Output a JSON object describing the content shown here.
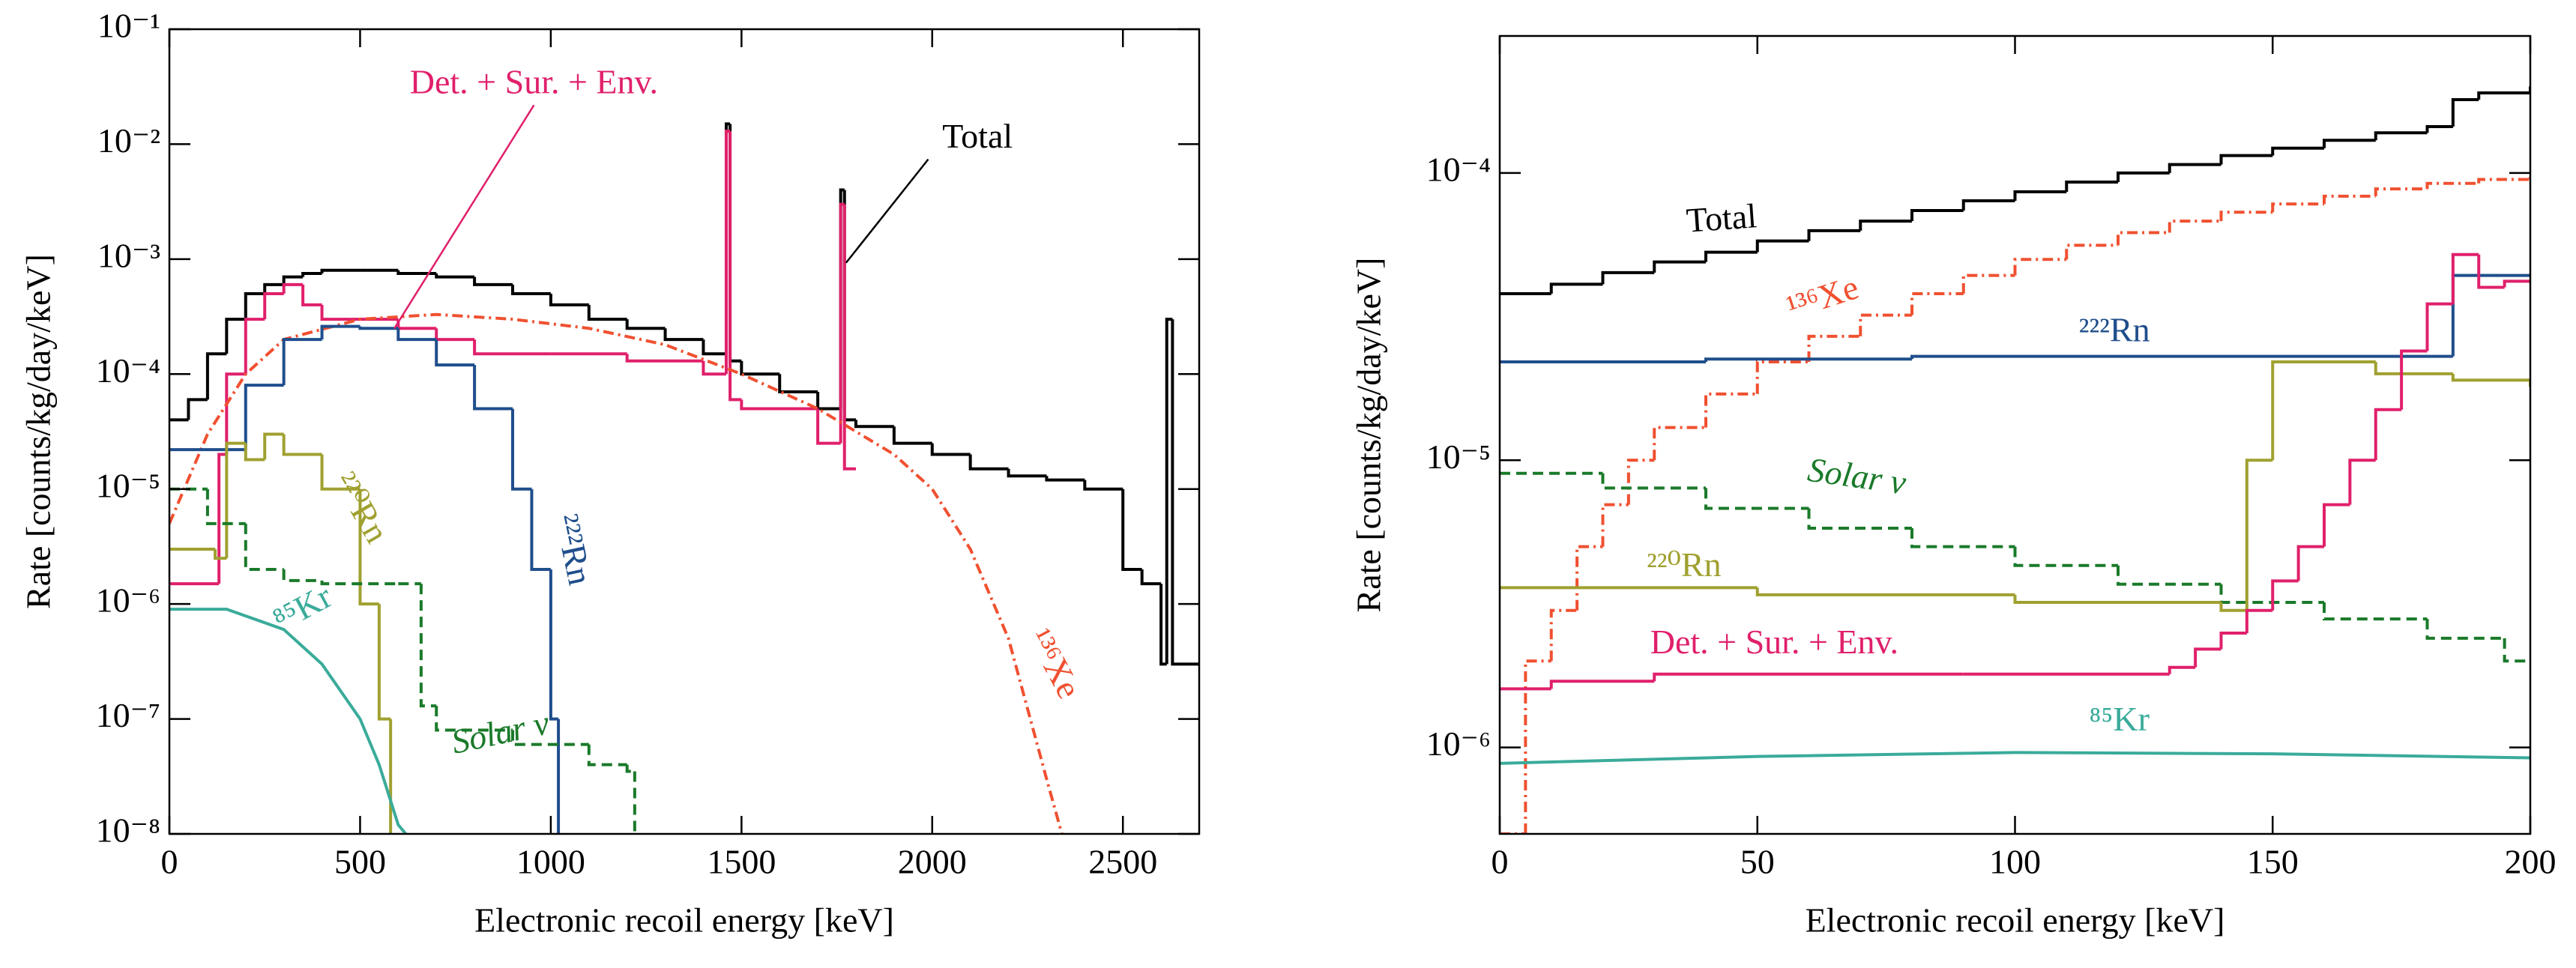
{
  "chart_data": [
    {
      "type": "line",
      "log_y": true,
      "xlabel": "Electronic recoil energy [keV]",
      "ylabel": "Rate [counts/kg/day/keV]",
      "xlim": [
        0,
        2700
      ],
      "xticks": [
        0,
        500,
        1000,
        1500,
        2000,
        2500
      ],
      "ylim": [
        1e-08,
        0.1
      ],
      "yticks": [
        {
          "value": 1e-08,
          "label": "10⁻⁸"
        },
        {
          "value": 1e-07,
          "label": "10⁻⁷"
        },
        {
          "value": 1e-06,
          "label": "10⁻⁶"
        },
        {
          "value": 1e-05,
          "label": "10⁻⁵"
        },
        {
          "value": 0.0001,
          "label": "10⁻⁴"
        },
        {
          "value": 0.001,
          "label": "10⁻³"
        },
        {
          "value": 0.01,
          "label": "10⁻²"
        },
        {
          "value": 0.1,
          "label": "10⁻¹"
        }
      ],
      "series": [
        {
          "name": "Total",
          "color": "#000000",
          "linestyle": "solid",
          "drawstyle": "steps",
          "x": [
            0,
            50,
            100,
            150,
            200,
            250,
            300,
            350,
            400,
            450,
            500,
            600,
            700,
            800,
            900,
            1000,
            1100,
            1200,
            1300,
            1400,
            1460,
            1470,
            1500,
            1600,
            1700,
            1760,
            1770,
            1800,
            1900,
            2000,
            2100,
            2200,
            2300,
            2400,
            2500,
            2550,
            2600,
            2615,
            2630,
            2700
          ],
          "values": [
            4e-05,
            6e-05,
            0.00015,
            0.0003,
            0.0005,
            0.0006,
            0.0007,
            0.00075,
            0.0008,
            0.0008,
            0.0008,
            0.00075,
            0.0007,
            0.0006,
            0.0005,
            0.0004,
            0.0003,
            0.00025,
            0.0002,
            0.00015,
            0.015,
            0.00013,
            0.0001,
            7e-05,
            5e-05,
            0.004,
            4e-05,
            3.5e-05,
            2.5e-05,
            2e-05,
            1.5e-05,
            1.3e-05,
            1.2e-05,
            1e-05,
            2e-06,
            1.5e-06,
            3e-07,
            0.0003,
            3e-07,
            3e-07
          ]
        },
        {
          "name": "Det. + Sur. + Env.",
          "color": "#e0206b",
          "linestyle": "solid",
          "drawstyle": "steps",
          "x": [
            0,
            130,
            150,
            200,
            250,
            300,
            350,
            400,
            500,
            600,
            700,
            800,
            900,
            1000,
            1200,
            1400,
            1460,
            1470,
            1500,
            1700,
            1760,
            1770,
            1800
          ],
          "values": [
            1.5e-06,
            2e-05,
            0.0001,
            0.0003,
            0.0005,
            0.0006,
            0.0004,
            0.0003,
            0.0003,
            0.00025,
            0.0002,
            0.00015,
            0.00015,
            0.00015,
            0.00013,
            0.0001,
            0.013,
            6e-05,
            5e-05,
            2.5e-05,
            0.003,
            1.5e-05,
            1.5e-05
          ]
        },
        {
          "name": "¹³⁶Xe",
          "color": "#f05030",
          "linestyle": "dashdot",
          "drawstyle": "line",
          "x": [
            0,
            100,
            200,
            300,
            500,
            700,
            900,
            1100,
            1300,
            1500,
            1700,
            1900,
            2000,
            2100,
            2200,
            2300,
            2340
          ],
          "values": [
            5e-06,
            3e-05,
            0.0001,
            0.0002,
            0.0003,
            0.00033,
            0.0003,
            0.00025,
            0.00018,
            0.0001,
            5e-05,
            2e-05,
            1e-05,
            3e-06,
            5e-07,
            3e-08,
            1e-08
          ]
        },
        {
          "name": "²²²Rn",
          "color": "#1f4e8c",
          "linestyle": "solid",
          "drawstyle": "steps",
          "x": [
            0,
            150,
            200,
            300,
            400,
            500,
            600,
            700,
            800,
            900,
            950,
            1000,
            1020
          ],
          "values": [
            2.2e-05,
            2.2e-05,
            8e-05,
            0.0002,
            0.00026,
            0.00025,
            0.0002,
            0.00012,
            5e-05,
            1e-05,
            2e-06,
            1e-07,
            1e-08
          ]
        },
        {
          "name": "²²⁰Rn",
          "color": "#a0a030",
          "linestyle": "solid",
          "drawstyle": "steps",
          "x": [
            0,
            120,
            150,
            200,
            250,
            300,
            400,
            500,
            550,
            580
          ],
          "values": [
            3e-06,
            2.5e-06,
            2.5e-05,
            1.8e-05,
            3e-05,
            2e-05,
            1e-05,
            1e-06,
            1e-07,
            1e-08
          ]
        },
        {
          "name": "⁸⁵Kr",
          "color": "#3aab9a",
          "linestyle": "solid",
          "drawstyle": "line",
          "x": [
            0,
            150,
            300,
            400,
            500,
            550,
            600,
            620
          ],
          "values": [
            9e-07,
            9e-07,
            6e-07,
            3e-07,
            1e-07,
            4e-08,
            1.2e-08,
            1e-08
          ]
        },
        {
          "name": "Solar ν",
          "color": "#1a7a2a",
          "linestyle": "dashed",
          "drawstyle": "steps",
          "x": [
            0,
            100,
            200,
            300,
            400,
            600,
            660,
            700,
            900,
            1100,
            1200,
            1220
          ],
          "values": [
            1e-05,
            5e-06,
            2e-06,
            1.6e-06,
            1.5e-06,
            1.5e-06,
            1.3e-07,
            8e-08,
            6e-08,
            4e-08,
            3.5e-08,
            1e-08
          ]
        }
      ]
    },
    {
      "type": "line",
      "log_y": true,
      "xlabel": "Electronic recoil energy [keV]",
      "ylabel": "Rate [counts/kg/day/keV]",
      "xlim": [
        0,
        200
      ],
      "xticks": [
        0,
        50,
        100,
        150,
        200
      ],
      "ylim": [
        5e-07,
        0.0003
      ],
      "yticks": [
        {
          "value": 1e-06,
          "label": "10⁻⁶"
        },
        {
          "value": 1e-05,
          "label": "10⁻⁵"
        },
        {
          "value": 0.0001,
          "label": "10⁻⁴"
        }
      ],
      "series": [
        {
          "name": "Total",
          "color": "#000000",
          "linestyle": "solid",
          "drawstyle": "steps",
          "x": [
            0,
            10,
            20,
            30,
            40,
            50,
            60,
            70,
            80,
            90,
            100,
            110,
            120,
            130,
            140,
            150,
            160,
            170,
            180,
            185,
            190,
            200
          ],
          "values": [
            3.8e-05,
            4.1e-05,
            4.5e-05,
            4.9e-05,
            5.3e-05,
            5.8e-05,
            6.3e-05,
            6.8e-05,
            7.4e-05,
            8e-05,
            8.6e-05,
            9.3e-05,
            0.0001,
            0.000107,
            0.000115,
            0.000122,
            0.00013,
            0.000138,
            0.000145,
            0.00018,
            0.00019,
            0.0002
          ]
        },
        {
          "name": "¹³⁶Xe",
          "color": "#f05030",
          "linestyle": "dashdot",
          "drawstyle": "steps",
          "x": [
            0,
            5,
            10,
            15,
            20,
            25,
            30,
            40,
            50,
            60,
            70,
            80,
            90,
            100,
            110,
            120,
            130,
            140,
            150,
            160,
            170,
            180,
            190,
            200
          ],
          "values": [
            5e-07,
            2e-06,
            3e-06,
            5e-06,
            7e-06,
            1e-05,
            1.3e-05,
            1.7e-05,
            2.2e-05,
            2.7e-05,
            3.2e-05,
            3.8e-05,
            4.4e-05,
            5e-05,
            5.6e-05,
            6.2e-05,
            6.8e-05,
            7.3e-05,
            7.8e-05,
            8.3e-05,
            8.8e-05,
            9.2e-05,
            9.5e-05,
            9.7e-05
          ]
        },
        {
          "name": "²²²Rn",
          "color": "#1f4e8c",
          "linestyle": "solid",
          "drawstyle": "steps",
          "x": [
            0,
            40,
            80,
            120,
            160,
            185,
            200
          ],
          "values": [
            2.2e-05,
            2.25e-05,
            2.3e-05,
            2.3e-05,
            2.3e-05,
            4.4e-05,
            4.4e-05
          ]
        },
        {
          "name": "Solar ν",
          "color": "#1a7a2a",
          "linestyle": "dashed",
          "drawstyle": "steps",
          "x": [
            0,
            20,
            40,
            60,
            80,
            100,
            120,
            140,
            160,
            180,
            195,
            200
          ],
          "values": [
            9e-06,
            8e-06,
            6.8e-06,
            5.8e-06,
            5e-06,
            4.3e-06,
            3.7e-06,
            3.2e-06,
            2.8e-06,
            2.4e-06,
            2e-06,
            2e-06
          ]
        },
        {
          "name": "²²⁰Rn",
          "color": "#a0a030",
          "linestyle": "solid",
          "drawstyle": "steps",
          "x": [
            0,
            50,
            100,
            140,
            145,
            150,
            170,
            185,
            200
          ],
          "values": [
            3.6e-06,
            3.4e-06,
            3.2e-06,
            3e-06,
            1e-05,
            2.2e-05,
            2e-05,
            1.9e-05,
            1.8e-05
          ]
        },
        {
          "name": "Det. + Sur. + Env.",
          "color": "#e0206b",
          "linestyle": "solid",
          "drawstyle": "steps",
          "x": [
            0,
            10,
            30,
            60,
            90,
            120,
            130,
            135,
            140,
            145,
            150,
            155,
            160,
            165,
            170,
            175,
            180,
            185,
            190,
            195,
            200
          ],
          "values": [
            1.6e-06,
            1.7e-06,
            1.8e-06,
            1.8e-06,
            1.8e-06,
            1.8e-06,
            1.9e-06,
            2.2e-06,
            2.5e-06,
            3e-06,
            3.8e-06,
            5e-06,
            7e-06,
            1e-05,
            1.5e-05,
            2.4e-05,
            3.5e-05,
            5.2e-05,
            4e-05,
            4.2e-05,
            4.2e-05
          ]
        },
        {
          "name": "⁸⁵Kr",
          "color": "#3aab9a",
          "linestyle": "solid",
          "drawstyle": "line",
          "x": [
            0,
            50,
            100,
            150,
            200
          ],
          "values": [
            8.8e-07,
            9.3e-07,
            9.6e-07,
            9.5e-07,
            9.2e-07
          ]
        }
      ]
    }
  ]
}
